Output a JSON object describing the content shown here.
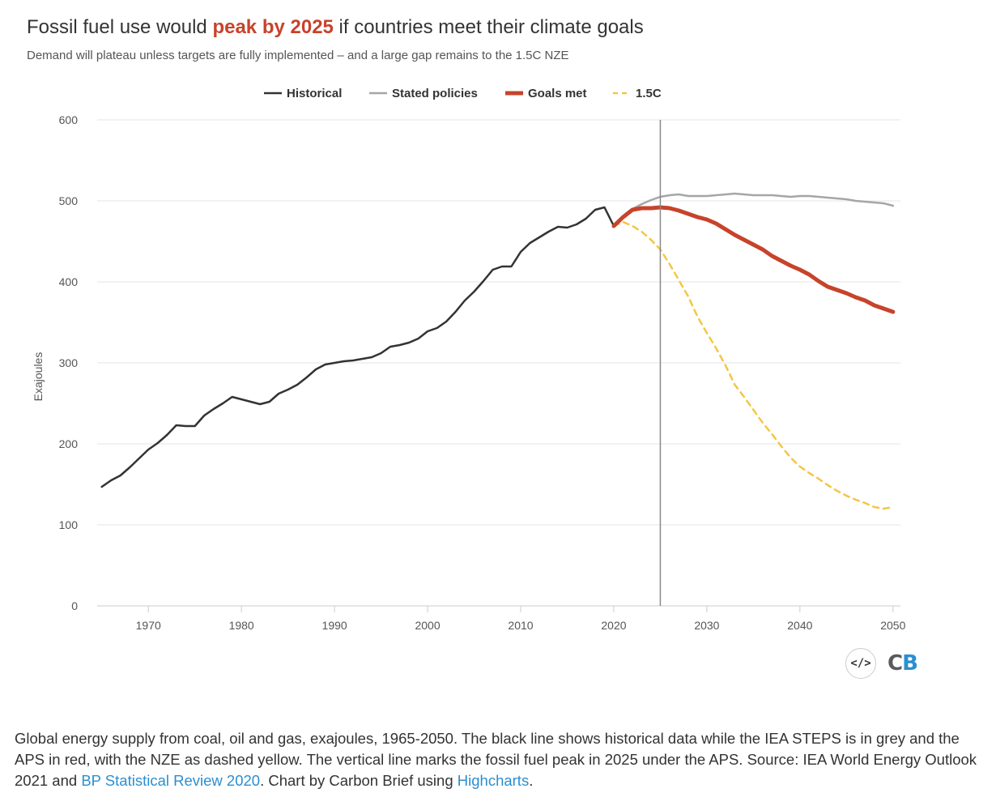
{
  "title": {
    "before": "Fossil fuel use would ",
    "highlight": "peak by 2025",
    "after": " if countries meet their climate goals"
  },
  "subtitle": "Demand will plateau unless targets are fully implemented – and a large gap remains to the 1.5C NZE",
  "caption": {
    "part1": "Global energy supply from coal, oil and gas, exajoules, 1965-2050. The black line shows historical data while the IEA STEPS is in grey and the APS in red, with the NZE as dashed yellow. The vertical line marks the fossil fuel peak in 2025 under the APS. Source: IEA World Energy Outlook 2021 and ",
    "link1": "BP Statistical Review 2020",
    "part2": ". Chart by Carbon Brief using ",
    "link2": "Highcharts",
    "part3": "."
  },
  "logo": {
    "embed_symbol": "</>",
    "c": "C",
    "b": "B"
  },
  "colors": {
    "historical": "#333333",
    "stated": "#a6a6a6",
    "goals": "#c7432b",
    "nze": "#f2c744",
    "marker": "#888888"
  },
  "chart_data": {
    "type": "line",
    "title": "Fossil fuel use would peak by 2025 if countries meet their climate goals",
    "ylabel": "Exajoules",
    "xlabel": "",
    "ylim": [
      0,
      600
    ],
    "xlim": [
      1964.5,
      2050.8
    ],
    "yticks": [
      0,
      100,
      200,
      300,
      400,
      500,
      600
    ],
    "xticks": [
      1970,
      1980,
      1990,
      2000,
      2010,
      2020,
      2030,
      2040,
      2050
    ],
    "vertical_line": 2025,
    "legend_position": "top-center",
    "grid": true,
    "series": [
      {
        "name": "Historical",
        "style": "solid",
        "x": [
          1965,
          1966,
          1967,
          1968,
          1969,
          1970,
          1971,
          1972,
          1973,
          1974,
          1975,
          1976,
          1977,
          1978,
          1979,
          1980,
          1981,
          1982,
          1983,
          1984,
          1985,
          1986,
          1987,
          1988,
          1989,
          1990,
          1991,
          1992,
          1993,
          1994,
          1995,
          1996,
          1997,
          1998,
          1999,
          2000,
          2001,
          2002,
          2003,
          2004,
          2005,
          2006,
          2007,
          2008,
          2009,
          2010,
          2011,
          2012,
          2013,
          2014,
          2015,
          2016,
          2017,
          2018,
          2019,
          2020
        ],
        "y": [
          147,
          155,
          161,
          171,
          182,
          193,
          201,
          211,
          223,
          222,
          222,
          235,
          243,
          250,
          258,
          255,
          252,
          249,
          252,
          262,
          267,
          273,
          282,
          292,
          298,
          300,
          302,
          303,
          305,
          307,
          312,
          320,
          322,
          325,
          330,
          339,
          343,
          351,
          363,
          377,
          388,
          401,
          415,
          419,
          419,
          437,
          448,
          455,
          462,
          468,
          467,
          471,
          478,
          489,
          492,
          469
        ]
      },
      {
        "name": "Stated policies",
        "style": "solid",
        "x": [
          2020,
          2021,
          2022,
          2023,
          2024,
          2025,
          2026,
          2027,
          2028,
          2029,
          2030,
          2031,
          2032,
          2033,
          2034,
          2035,
          2036,
          2037,
          2038,
          2039,
          2040,
          2041,
          2042,
          2043,
          2044,
          2045,
          2046,
          2047,
          2048,
          2049,
          2050
        ],
        "y": [
          469,
          480,
          490,
          496,
          501,
          505,
          507,
          508,
          506,
          506,
          506,
          507,
          508,
          509,
          508,
          507,
          507,
          507,
          506,
          505,
          506,
          506,
          505,
          504,
          503,
          502,
          500,
          499,
          498,
          497,
          494
        ]
      },
      {
        "name": "Goals met",
        "style": "solid-thick",
        "x": [
          2020,
          2021,
          2022,
          2023,
          2024,
          2025,
          2026,
          2027,
          2028,
          2029,
          2030,
          2031,
          2032,
          2033,
          2034,
          2035,
          2036,
          2037,
          2038,
          2039,
          2040,
          2041,
          2042,
          2043,
          2044,
          2045,
          2046,
          2047,
          2048,
          2049,
          2050
        ],
        "y": [
          469,
          480,
          489,
          491,
          491,
          492,
          491,
          488,
          484,
          480,
          477,
          472,
          465,
          458,
          452,
          446,
          440,
          432,
          426,
          420,
          415,
          409,
          401,
          394,
          390,
          386,
          381,
          377,
          371,
          367,
          363
        ]
      },
      {
        "name": "1.5C",
        "style": "dashed",
        "x": [
          2020,
          2021,
          2022,
          2023,
          2024,
          2025,
          2026,
          2027,
          2028,
          2029,
          2030,
          2031,
          2032,
          2033,
          2034,
          2035,
          2036,
          2037,
          2038,
          2039,
          2040,
          2041,
          2042,
          2043,
          2044,
          2045,
          2046,
          2047,
          2048,
          2049,
          2050
        ],
        "y": [
          469,
          474,
          469,
          462,
          452,
          440,
          422,
          402,
          382,
          357,
          337,
          318,
          297,
          273,
          258,
          242,
          226,
          212,
          197,
          183,
          172,
          164,
          157,
          149,
          142,
          136,
          131,
          127,
          122,
          120,
          122
        ]
      }
    ]
  }
}
